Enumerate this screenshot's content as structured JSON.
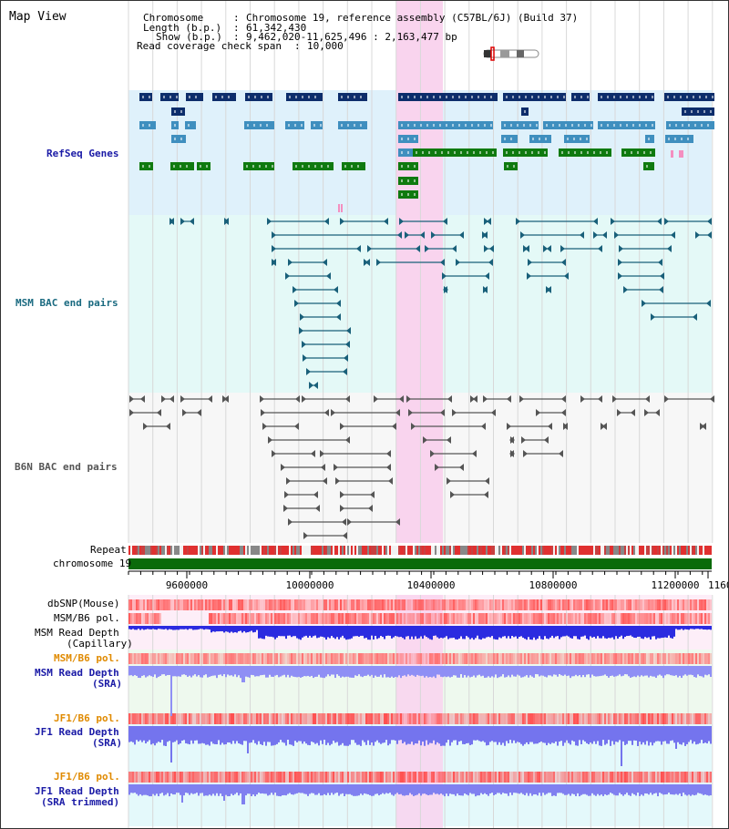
{
  "title": "Map View",
  "info": {
    "chromosome_key": "Chromosome",
    "chromosome_val": "Chromosome 19, reference assembly (C57BL/6J) (Build 37)",
    "length_key": "Length (b.p.)",
    "length_val": "61,342,430",
    "show_key": "Show (b.p.)",
    "show_val": "9,462,020-11,625,496 : 2,163,477 bp",
    "span_key": "Read coverage check span",
    "span_val": "10,000"
  },
  "tracks": {
    "refseq": "RefSeq Genes",
    "msm_bac": "MSM BAC end pairs",
    "b6n_bac": "B6N BAC end pairs",
    "repeat": "Repeat",
    "chromosome": "chromosome 19",
    "dbsnp": "dbSNP(Mouse)",
    "msm_b6_pol": "MSM/B6 pol.",
    "msm_depth_cap_1": "MSM Read Depth",
    "msm_depth_cap_2": "(Capillary)",
    "msm_b6_pol2": "MSM/B6 pol.",
    "msm_depth_sra_1": "MSM Read Depth",
    "msm_depth_sra_2": "(SRA)",
    "jf1_b6_pol": "JF1/B6 pol.",
    "jf1_depth_sra_1": "JF1 Read Depth",
    "jf1_depth_sra_2": "(SRA)",
    "jf1_b6_pol2": "JF1/B6 pol.",
    "jf1_depth_trim_1": "JF1 Read Depth",
    "jf1_depth_trim_2": "(SRA trimmed)"
  },
  "axis": {
    "ticks": [
      "9600000",
      "10000000",
      "10400000",
      "10800000",
      "11200000",
      "1160"
    ]
  },
  "colors": {
    "refseq_bg": "#dff1fb",
    "msm_bg": "#e4f9f7",
    "highlight": "#f9d4ee",
    "gene_dark": "#0d2d6b",
    "gene_mid": "#3f8fbf",
    "gene_green": "#0f7a0f",
    "msm_line": "#19607a",
    "b6n_line": "#555555",
    "chrom_green": "#0a6b0a",
    "label_blue": "#1a1aa6",
    "label_teal": "#1a6a80",
    "label_orange": "#e08a00",
    "depth_blue": "#2020e0"
  }
}
